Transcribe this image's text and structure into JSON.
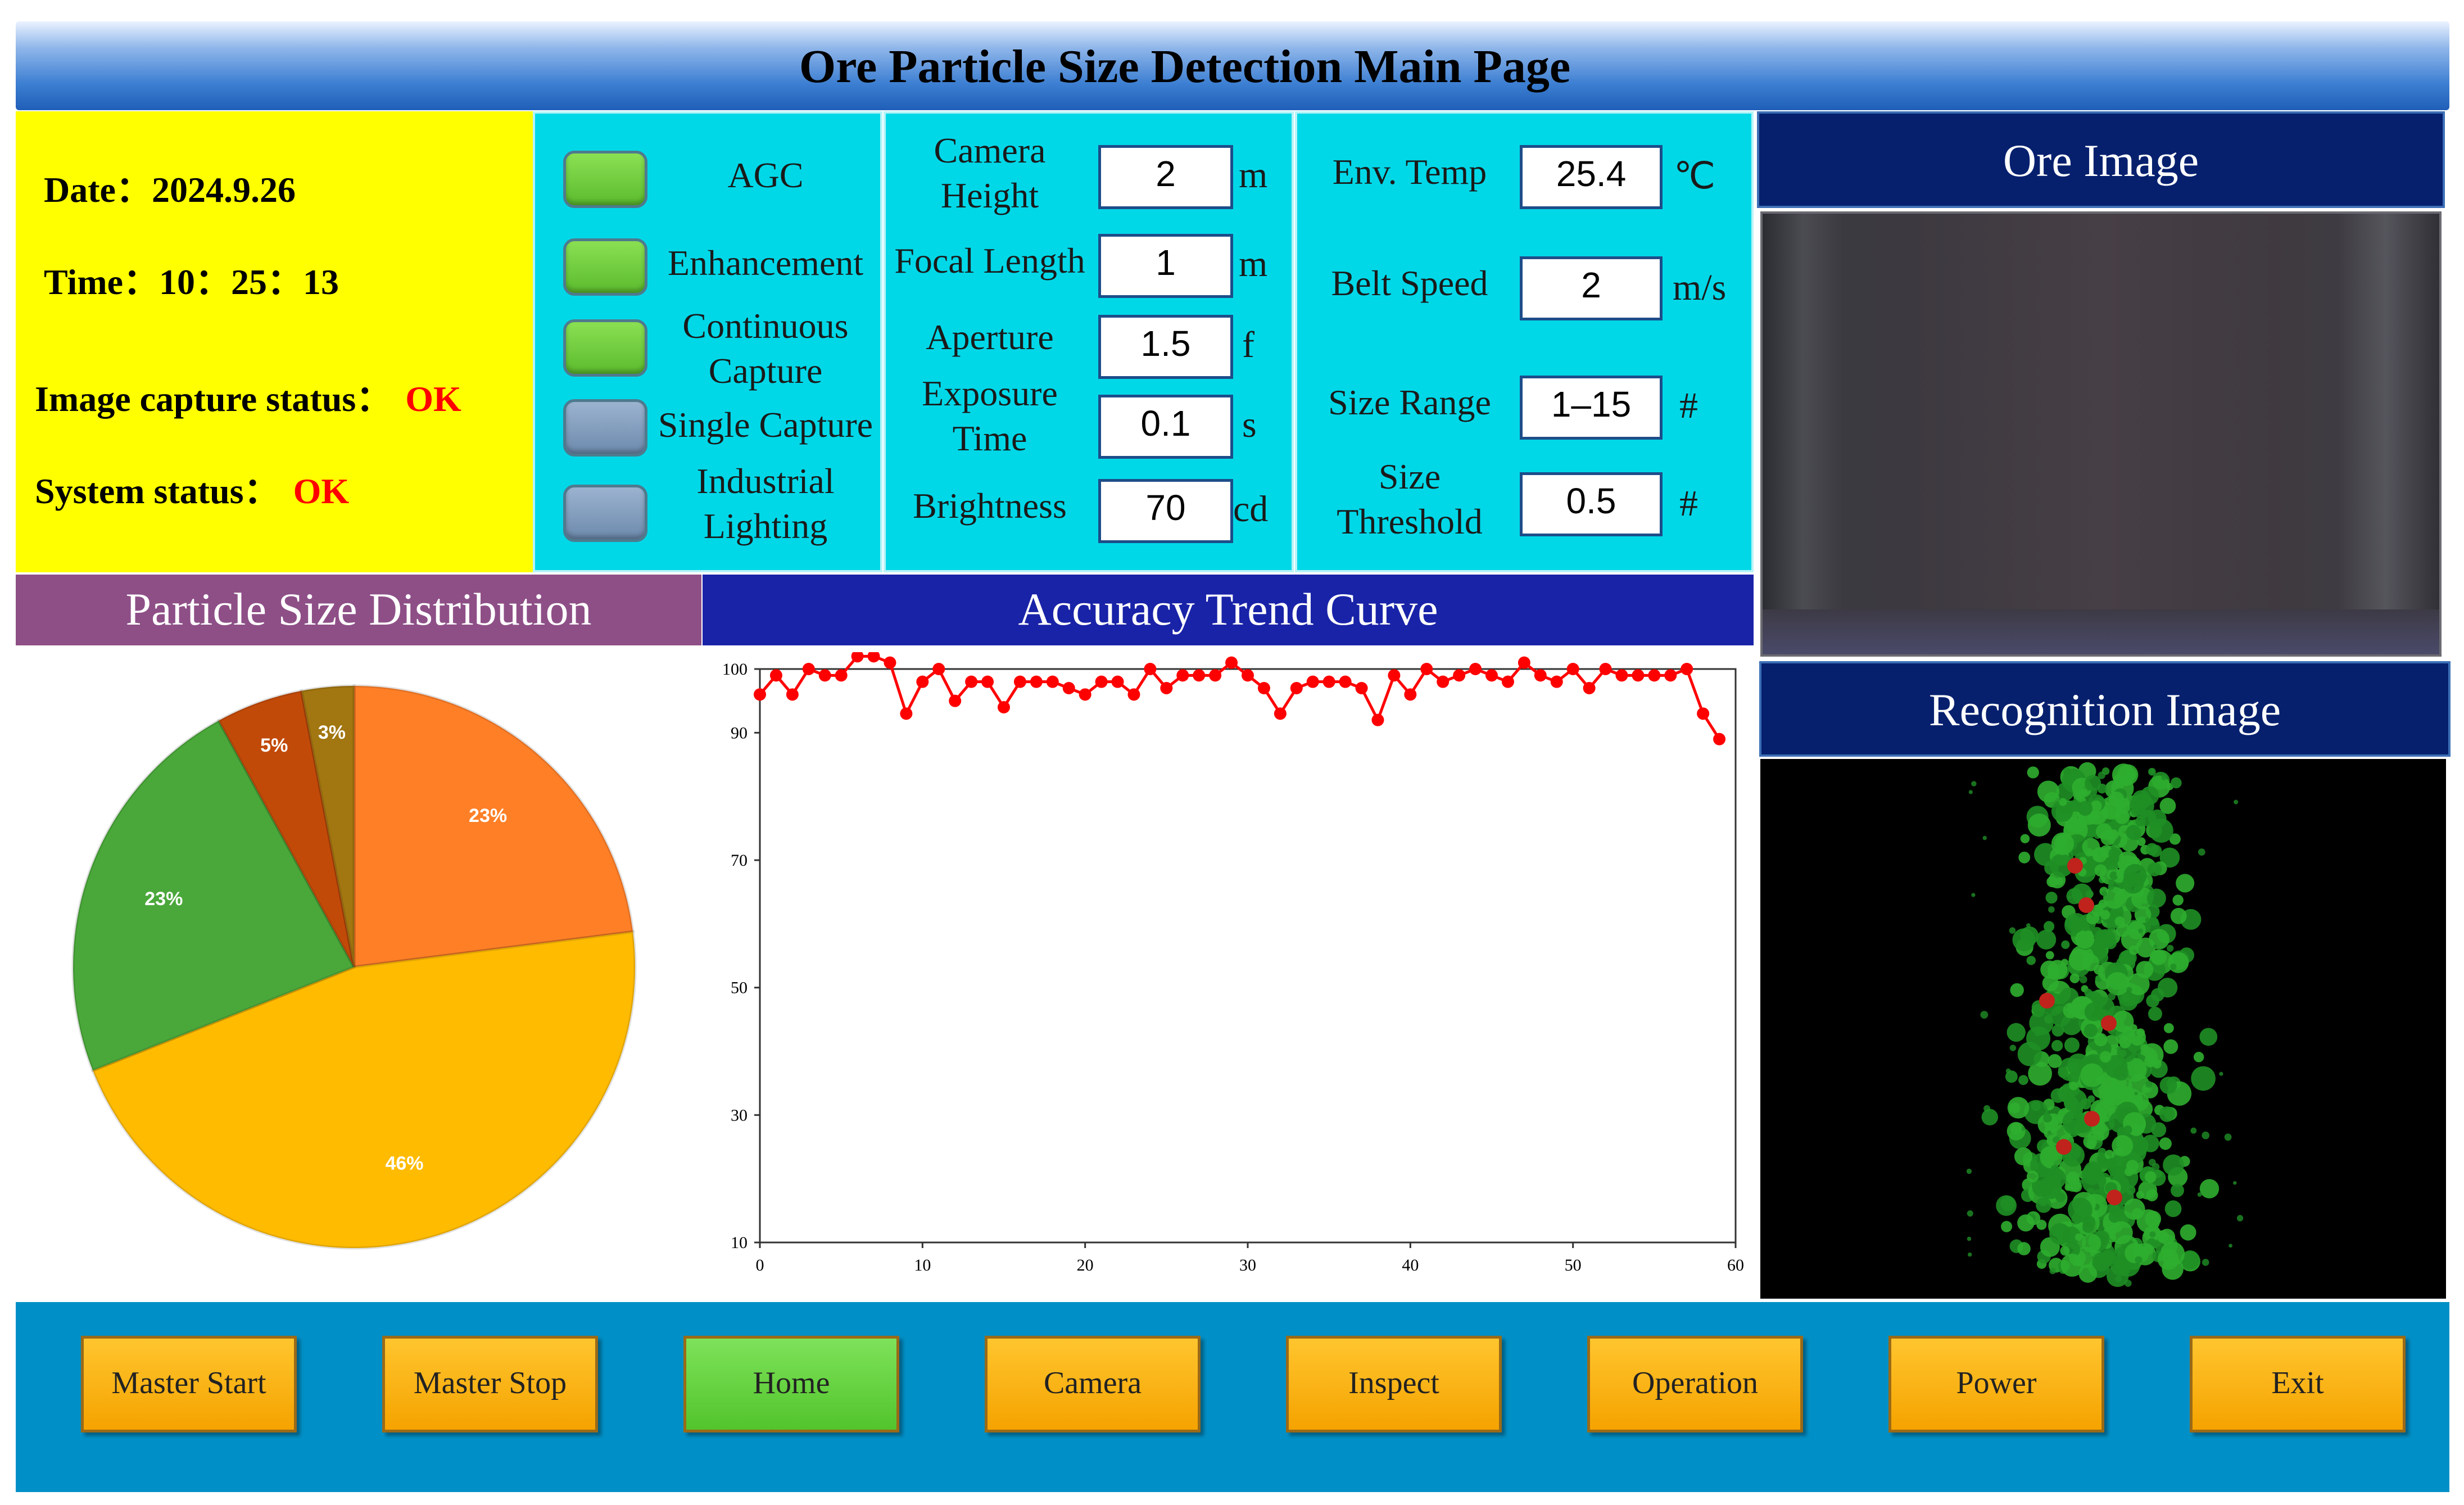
{
  "title": "Ore Particle Size Detection Main Page",
  "info": {
    "date_label": "Date：",
    "date_value": "2024.9.26",
    "time_label": "Time：",
    "time_value": "10：25：13",
    "capture_label": "Image capture status：",
    "capture_value": "OK",
    "system_label": "System status：",
    "system_value": "OK",
    "status_color": "#ff0000"
  },
  "toggles": [
    {
      "label": "AGC",
      "state": "on"
    },
    {
      "label": "Enhancement",
      "state": "on"
    },
    {
      "label_line1": "Continuous",
      "label_line2": "Capture",
      "state": "on"
    },
    {
      "label": "Single Capture",
      "state": "off"
    },
    {
      "label_line1": "Industrial",
      "label_line2": "Lighting",
      "state": "off"
    }
  ],
  "camera_params": [
    {
      "label_line1": "Camera",
      "label_line2": "Height",
      "value": "2",
      "unit": "m"
    },
    {
      "label": "Focal Length",
      "value": "1",
      "unit": "m"
    },
    {
      "label": "Aperture",
      "value": "1.5",
      "unit": "f"
    },
    {
      "label_line1": "Exposure",
      "label_line2": "Time",
      "value": "0.1",
      "unit": "s"
    },
    {
      "label": "Brightness",
      "value": "70",
      "unit": "cd"
    }
  ],
  "env_params": [
    {
      "label": "Env. Temp",
      "value": "25.4",
      "unit": "℃"
    },
    {
      "label": "Belt Speed",
      "value": "2",
      "unit": "m/s"
    },
    {
      "label": "Size Range",
      "value": "1–15",
      "unit": "#"
    },
    {
      "label_line1": "Size",
      "label_line2": "Threshold",
      "value": "0.5",
      "unit": "#"
    }
  ],
  "panels": {
    "ore_image": "Ore Image",
    "recognition_image": "Recognition Image",
    "particle_size_distribution": "Particle Size Distribution",
    "accuracy_trend_curve": "Accuracy Trend Curve"
  },
  "buttons": [
    {
      "label": "Master Start",
      "style": "orange"
    },
    {
      "label": "Master Stop",
      "style": "orange"
    },
    {
      "label": "Home",
      "style": "green"
    },
    {
      "label": "Camera",
      "style": "orange"
    },
    {
      "label": "Inspect",
      "style": "orange"
    },
    {
      "label": "Operation",
      "style": "orange"
    },
    {
      "label": "Power",
      "style": "orange"
    },
    {
      "label": "Exit",
      "style": "orange"
    }
  ],
  "chart_data": [
    {
      "type": "pie",
      "slices": [
        {
          "label": "23%",
          "value": 23,
          "color": "#ff7f27"
        },
        {
          "label": "46%",
          "value": 46,
          "color": "#ffbb00"
        },
        {
          "label": "23%",
          "value": 23,
          "color": "#4aa83a"
        },
        {
          "label": "5%",
          "value": 5,
          "color": "#c24a08"
        },
        {
          "label": "3%",
          "value": 3,
          "color": "#a27610"
        }
      ]
    },
    {
      "type": "line",
      "color": "#ff0000",
      "xlim": [
        0,
        60
      ],
      "ylim": [
        10,
        100
      ],
      "xticks": [
        0,
        10,
        20,
        30,
        40,
        50,
        60
      ],
      "yticks": [
        10,
        30,
        50,
        70,
        90,
        100
      ],
      "grid": false,
      "series": [
        {
          "x": [
            0,
            1,
            2,
            3,
            4,
            5,
            6,
            7,
            8,
            9,
            10,
            11,
            12,
            13,
            14,
            15,
            16,
            17,
            18,
            19,
            20,
            21,
            22,
            23,
            24,
            25,
            26,
            27,
            28,
            29,
            30,
            31,
            32,
            33,
            34,
            35,
            36,
            37,
            38,
            39,
            40,
            41,
            42,
            43,
            44,
            45,
            46,
            47,
            48,
            49,
            50,
            51,
            52,
            53,
            54,
            55,
            56,
            57,
            58,
            59
          ],
          "y": [
            96,
            99,
            96,
            100,
            99,
            99,
            102,
            102,
            101,
            93,
            98,
            100,
            95,
            98,
            98,
            94,
            98,
            98,
            98,
            97,
            96,
            98,
            98,
            96,
            100,
            97,
            99,
            99,
            99,
            101,
            99,
            97,
            93,
            97,
            98,
            98,
            98,
            97,
            92,
            99,
            96,
            100,
            98,
            99,
            100,
            99,
            98,
            101,
            99,
            98,
            100,
            97,
            100,
            99,
            99,
            99,
            99,
            100,
            93,
            89
          ]
        }
      ]
    }
  ]
}
